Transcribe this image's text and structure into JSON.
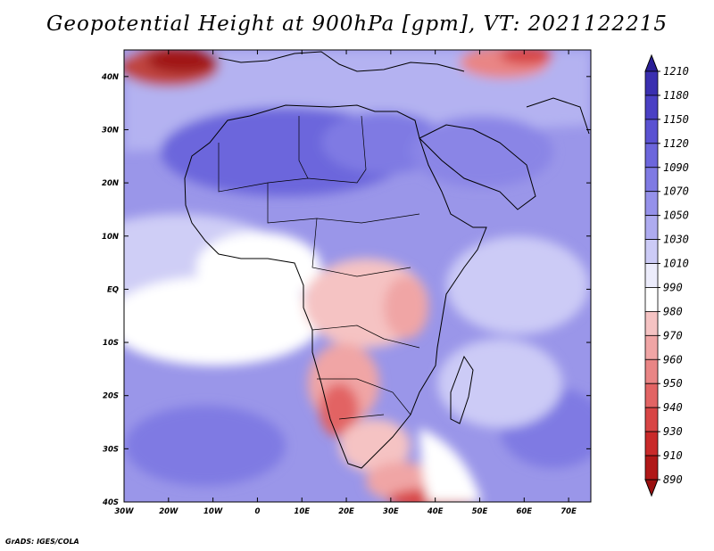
{
  "title": "Geopotential Height at 900hPa [gpm], VT: 2021122215",
  "credit": "GrADS: IGES/COLA",
  "map": {
    "lat_labels": [
      "40N",
      "30N",
      "20N",
      "10N",
      "EQ",
      "10S",
      "20S",
      "30S",
      "40S"
    ],
    "lon_labels": [
      "30W",
      "20W",
      "10W",
      "0",
      "10E",
      "20E",
      "30E",
      "40E",
      "50E",
      "60E",
      "70E"
    ],
    "extent": {
      "lon_min": -30,
      "lon_max": 75,
      "lat_min": -40,
      "lat_max": 45
    }
  },
  "colorbar": {
    "levels": [
      "1210",
      "1180",
      "1150",
      "1120",
      "1090",
      "1070",
      "1050",
      "1030",
      "1010",
      "990",
      "980",
      "970",
      "960",
      "950",
      "940",
      "930",
      "910",
      "890"
    ],
    "colors": [
      "#2a1e96",
      "#3a2fb0",
      "#4a40c4",
      "#5a52d2",
      "#6c66dc",
      "#7f7ae3",
      "#9591ea",
      "#aeabf0",
      "#cccbf6",
      "#ececfb",
      "#ffffff",
      "#f5c3c3",
      "#f0a5a5",
      "#e98585",
      "#e26464",
      "#d84545",
      "#c92a2a",
      "#b01818",
      "#9a1010"
    ]
  }
}
